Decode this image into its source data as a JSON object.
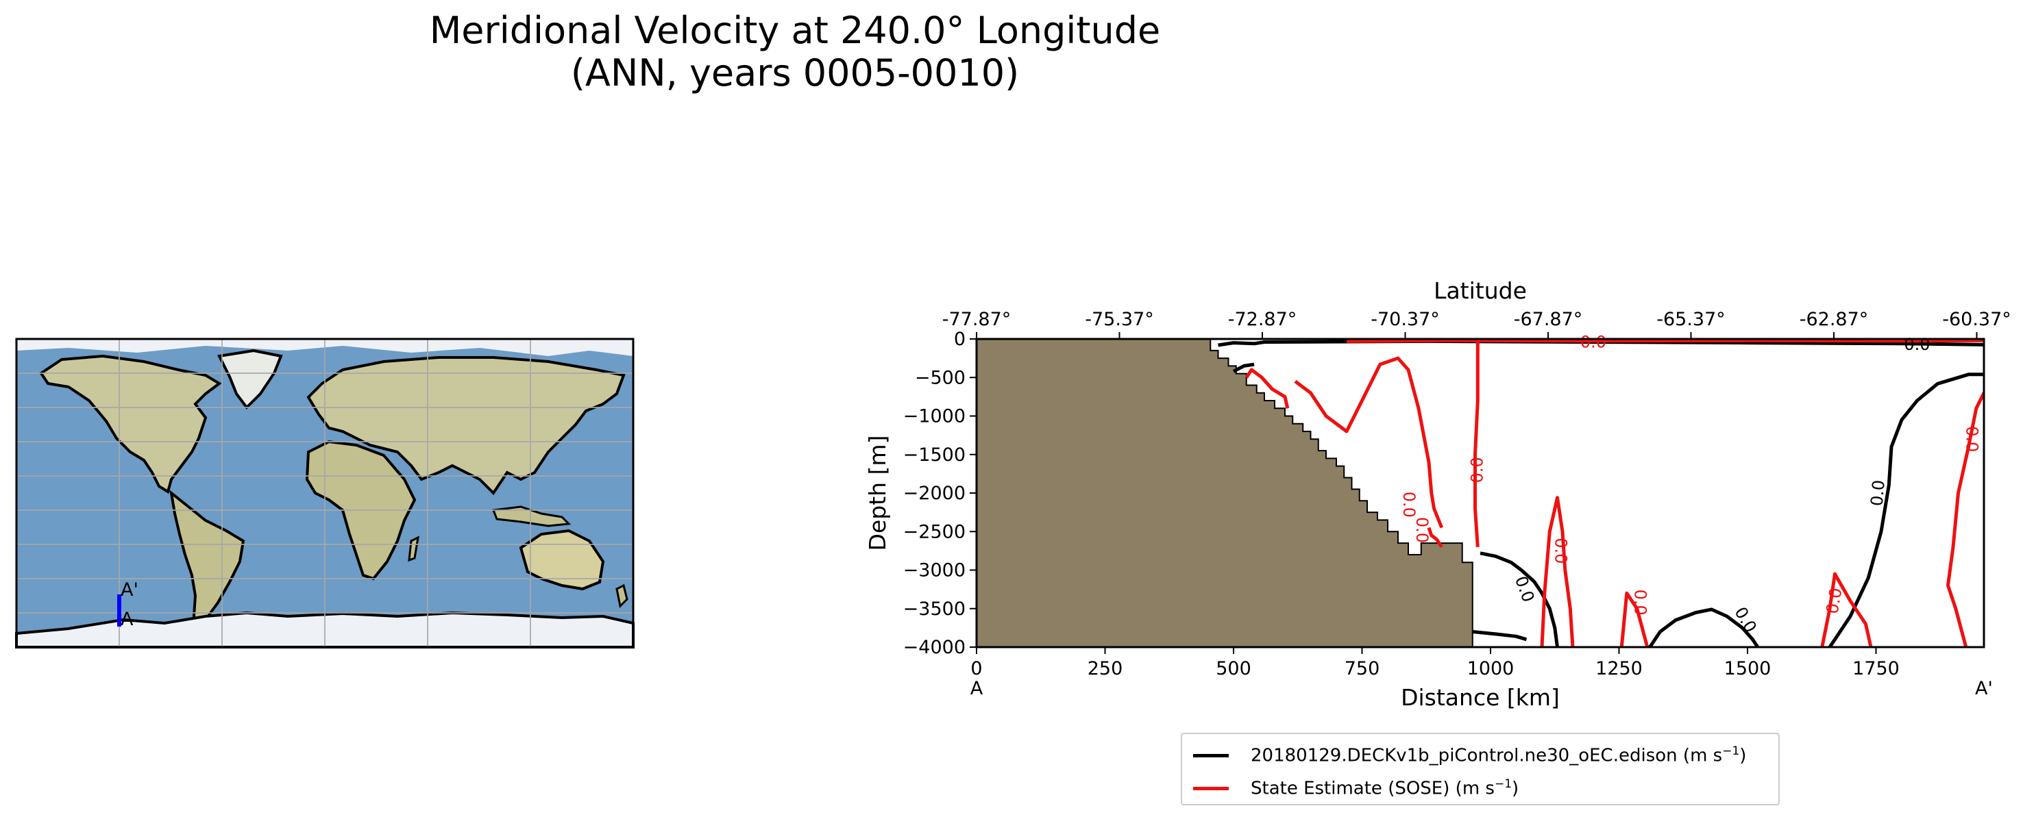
{
  "title": {
    "line1": "Meridional Velocity at 240.0° Longitude",
    "line2": "(ANN, years 0005-0010)"
  },
  "map": {
    "transect_start_label": "A",
    "transect_end_label": "A'",
    "colors": {
      "transect": "#0000ff",
      "ocean": "#6d9cc6",
      "land": "#c9c79c",
      "ice": "#eef1f6"
    }
  },
  "chart_data": {
    "type": "contour",
    "xlabel": "Distance [km]",
    "ylabel": "Depth [m]",
    "top_xlabel": "Latitude",
    "xlim": [
      0,
      1960
    ],
    "ylim": [
      -4000,
      0
    ],
    "x_ticks": [
      0,
      250,
      500,
      750,
      1000,
      1250,
      1500,
      1750
    ],
    "x_tick_labels": [
      "0",
      "250",
      "500",
      "750",
      "1000",
      "1250",
      "1500",
      "1750"
    ],
    "y_ticks": [
      0,
      -500,
      -1000,
      -1500,
      -2000,
      -2500,
      -3000,
      -3500,
      -4000
    ],
    "y_tick_labels": [
      "0",
      "−500",
      "−1000",
      "−1500",
      "−2000",
      "−2500",
      "−3000",
      "−3500",
      "−4000"
    ],
    "top_ticks": [
      0,
      278,
      556,
      834,
      1112,
      1390,
      1668,
      1946
    ],
    "top_tick_labels": [
      "-77.87°",
      "-75.37°",
      "-72.87°",
      "-70.37°",
      "-67.87°",
      "-65.37°",
      "-62.87°",
      "-60.37°"
    ],
    "endpoint_labels": {
      "start": "A",
      "end": "A'"
    },
    "bathymetry": {
      "color": "#8c7f64",
      "profile": [
        [
          0,
          0
        ],
        [
          455,
          0
        ],
        [
          455,
          -150
        ],
        [
          470,
          -150
        ],
        [
          470,
          -250
        ],
        [
          490,
          -250
        ],
        [
          490,
          -350
        ],
        [
          505,
          -350
        ],
        [
          505,
          -450
        ],
        [
          525,
          -450
        ],
        [
          525,
          -600
        ],
        [
          545,
          -600
        ],
        [
          545,
          -700
        ],
        [
          560,
          -700
        ],
        [
          560,
          -800
        ],
        [
          580,
          -800
        ],
        [
          580,
          -900
        ],
        [
          600,
          -900
        ],
        [
          600,
          -1000
        ],
        [
          615,
          -1000
        ],
        [
          615,
          -1100
        ],
        [
          635,
          -1100
        ],
        [
          635,
          -1200
        ],
        [
          650,
          -1200
        ],
        [
          650,
          -1300
        ],
        [
          665,
          -1300
        ],
        [
          665,
          -1450
        ],
        [
          680,
          -1450
        ],
        [
          680,
          -1550
        ],
        [
          700,
          -1550
        ],
        [
          700,
          -1650
        ],
        [
          715,
          -1650
        ],
        [
          715,
          -1800
        ],
        [
          730,
          -1800
        ],
        [
          730,
          -1950
        ],
        [
          745,
          -1950
        ],
        [
          745,
          -2100
        ],
        [
          760,
          -2100
        ],
        [
          760,
          -2250
        ],
        [
          780,
          -2250
        ],
        [
          780,
          -2350
        ],
        [
          800,
          -2350
        ],
        [
          800,
          -2500
        ],
        [
          820,
          -2500
        ],
        [
          820,
          -2650
        ],
        [
          840,
          -2650
        ],
        [
          840,
          -2800
        ],
        [
          865,
          -2800
        ],
        [
          865,
          -2650
        ],
        [
          945,
          -2650
        ],
        [
          945,
          -2900
        ],
        [
          965,
          -2900
        ],
        [
          965,
          -4000
        ],
        [
          0,
          -4000
        ]
      ]
    },
    "contour_level": 0.0,
    "contour_labels": [
      {
        "series": "model",
        "x": 1830,
        "y": -80,
        "text": "0.0",
        "rotate": 0
      },
      {
        "series": "model",
        "x": 1755,
        "y": -2000,
        "text": "0.0",
        "rotate": -85
      },
      {
        "series": "model",
        "x": 1065,
        "y": -3250,
        "text": "0.0",
        "rotate": 70
      },
      {
        "series": "model",
        "x": 1495,
        "y": -3650,
        "text": "0.0",
        "rotate": 60
      },
      {
        "series": "obs",
        "x": 1200,
        "y": -50,
        "text": "0.0",
        "rotate": 0
      },
      {
        "series": "obs",
        "x": 1935,
        "y": -1300,
        "text": "0.0",
        "rotate": 90
      },
      {
        "series": "obs",
        "x": 975,
        "y": -1700,
        "text": "0.0",
        "rotate": -90
      },
      {
        "series": "obs",
        "x": 1135,
        "y": -2750,
        "text": "0.0",
        "rotate": 90
      },
      {
        "series": "obs",
        "x": 840,
        "y": -2150,
        "text": "0.0",
        "rotate": 90
      },
      {
        "series": "obs",
        "x": 865,
        "y": -2480,
        "text": "0.0",
        "rotate": 90
      },
      {
        "series": "obs",
        "x": 1290,
        "y": -3420,
        "text": "0.0",
        "rotate": 90
      },
      {
        "series": "obs",
        "x": 1670,
        "y": -3400,
        "text": "0.0",
        "rotate": -80
      }
    ],
    "series": [
      {
        "name": "20180129.DECKv1b_piControl.ne30_oEC.edison",
        "unit": "m s",
        "unit_exp": "−1",
        "color": "#000000",
        "contours": [
          [
            [
              470,
              -80
            ],
            [
              500,
              -50
            ],
            [
              540,
              -60
            ],
            [
              560,
              -40
            ],
            [
              880,
              -30
            ],
            [
              1200,
              -40
            ],
            [
              1500,
              -50
            ],
            [
              1800,
              -60
            ],
            [
              1960,
              -75
            ]
          ],
          [
            [
              500,
              -420
            ],
            [
              520,
              -350
            ],
            [
              540,
              -330
            ]
          ],
          [
            [
              980,
              -2780
            ],
            [
              1010,
              -2820
            ],
            [
              1040,
              -2900
            ],
            [
              1060,
              -3000
            ],
            [
              1085,
              -3150
            ],
            [
              1100,
              -3300
            ],
            [
              1115,
              -3500
            ],
            [
              1125,
              -3750
            ],
            [
              1130,
              -4000
            ]
          ],
          [
            [
              965,
              -3800
            ],
            [
              1010,
              -3830
            ],
            [
              1050,
              -3860
            ],
            [
              1070,
              -3900
            ]
          ],
          [
            [
              1310,
              -4000
            ],
            [
              1330,
              -3800
            ],
            [
              1360,
              -3650
            ],
            [
              1400,
              -3550
            ],
            [
              1430,
              -3510
            ],
            [
              1460,
              -3600
            ],
            [
              1490,
              -3750
            ],
            [
              1510,
              -3900
            ],
            [
              1520,
              -4000
            ]
          ],
          [
            [
              1660,
              -4000
            ],
            [
              1700,
              -3600
            ],
            [
              1735,
              -3100
            ],
            [
              1760,
              -2500
            ],
            [
              1775,
              -1900
            ],
            [
              1780,
              -1400
            ],
            [
              1800,
              -1050
            ],
            [
              1830,
              -800
            ],
            [
              1870,
              -580
            ],
            [
              1930,
              -460
            ],
            [
              1960,
              -460
            ]
          ]
        ]
      },
      {
        "name": "State Estimate (SOSE)",
        "unit": "m s",
        "unit_exp": "−1",
        "color": "#ee1111",
        "contours": [
          [
            [
              720,
              -30
            ],
            [
              900,
              -20
            ],
            [
              1200,
              -25
            ],
            [
              1500,
              -20
            ],
            [
              1800,
              -25
            ],
            [
              1960,
              -20
            ]
          ],
          [
            [
              525,
              -500
            ],
            [
              535,
              -400
            ],
            [
              555,
              -500
            ],
            [
              575,
              -650
            ],
            [
              600,
              -750
            ],
            [
              605,
              -900
            ]
          ],
          [
            [
              620,
              -550
            ],
            [
              650,
              -700
            ],
            [
              680,
              -1000
            ],
            [
              720,
              -1200
            ],
            [
              750,
              -800
            ],
            [
              785,
              -330
            ],
            [
              820,
              -250
            ],
            [
              840,
              -400
            ],
            [
              860,
              -900
            ],
            [
              880,
              -1600
            ],
            [
              885,
              -2000
            ],
            [
              890,
              -2200
            ],
            [
              905,
              -2450
            ]
          ],
          [
            [
              880,
              -2450
            ],
            [
              885,
              -2550
            ],
            [
              895,
              -2600
            ],
            [
              905,
              -2700
            ]
          ],
          [
            [
              975,
              -20
            ],
            [
              975,
              -800
            ],
            [
              970,
              -1500
            ],
            [
              970,
              -2200
            ],
            [
              975,
              -2700
            ]
          ],
          [
            [
              1100,
              -4000
            ],
            [
              1105,
              -3300
            ],
            [
              1115,
              -2500
            ],
            [
              1130,
              -2060
            ],
            [
              1140,
              -2500
            ],
            [
              1145,
              -3000
            ],
            [
              1155,
              -3500
            ],
            [
              1160,
              -4000
            ]
          ],
          [
            [
              1255,
              -4000
            ],
            [
              1265,
              -3300
            ],
            [
              1285,
              -3500
            ],
            [
              1305,
              -4000
            ]
          ],
          [
            [
              1645,
              -4000
            ],
            [
              1660,
              -3500
            ],
            [
              1670,
              -3050
            ],
            [
              1700,
              -3400
            ],
            [
              1730,
              -3700
            ],
            [
              1740,
              -4000
            ]
          ],
          [
            [
              1960,
              -700
            ],
            [
              1945,
              -900
            ],
            [
              1930,
              -1400
            ],
            [
              1910,
              -2000
            ],
            [
              1900,
              -2700
            ],
            [
              1890,
              -3200
            ],
            [
              1905,
              -3500
            ],
            [
              1925,
              -4000
            ]
          ]
        ]
      }
    ]
  }
}
